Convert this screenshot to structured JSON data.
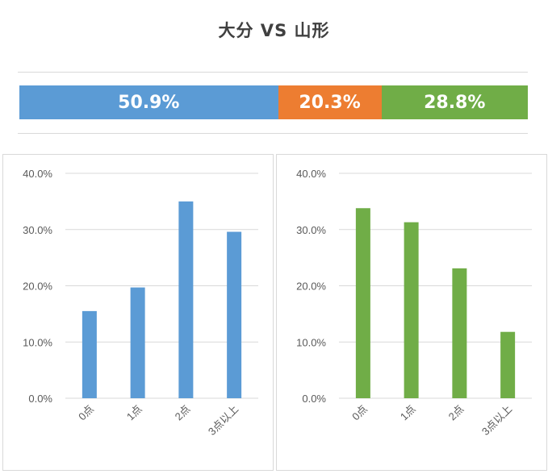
{
  "title": "大分 VS 山形",
  "summary": [
    {
      "label": "50.9%",
      "value": 50.9,
      "color": "#5b9bd5"
    },
    {
      "label": "20.3%",
      "value": 20.3,
      "color": "#ed7d31"
    },
    {
      "label": "28.8%",
      "value": 28.8,
      "color": "#70ad47"
    }
  ],
  "chart_data": [
    {
      "type": "bar",
      "categories": [
        "0点",
        "1点",
        "2点",
        "3点以上"
      ],
      "values": [
        15.5,
        19.7,
        35.0,
        29.6
      ],
      "color": "#5b9bd5",
      "ylim": [
        0,
        40
      ],
      "yticks": [
        "0.0%",
        "10.0%",
        "20.0%",
        "30.0%",
        "40.0%"
      ],
      "grid": true
    },
    {
      "type": "bar",
      "categories": [
        "0点",
        "1点",
        "2点",
        "3点以上"
      ],
      "values": [
        33.8,
        31.3,
        23.1,
        11.8
      ],
      "color": "#70ad47",
      "ylim": [
        0,
        40
      ],
      "yticks": [
        "0.0%",
        "10.0%",
        "20.0%",
        "30.0%",
        "40.0%"
      ],
      "grid": true
    }
  ]
}
